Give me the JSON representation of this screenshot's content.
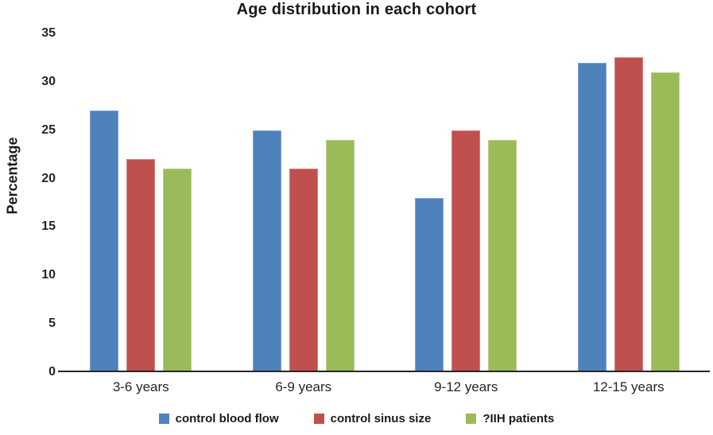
{
  "figure": {
    "title": "Age distribution in each cohort"
  },
  "chart_data": {
    "type": "bar",
    "title": "Age distribution in each cohort",
    "categories": [
      "3-6 years",
      "6-9 years",
      "9-12 years",
      "12-15 years"
    ],
    "series": [
      {
        "name": "control blood flow",
        "color": "#4F81BD",
        "values": [
          27,
          25,
          18,
          32
        ]
      },
      {
        "name": "control sinus size",
        "color": "#C0504D",
        "values": [
          22,
          21,
          25,
          32.5
        ]
      },
      {
        "name": "?IIH patients",
        "color": "#9BBB59",
        "values": [
          21,
          24,
          24,
          31
        ]
      }
    ],
    "xlabel": "",
    "ylabel": "Percentage",
    "ylim": [
      0,
      35
    ],
    "yticks": [
      0,
      5,
      10,
      15,
      20,
      25,
      30,
      35
    ],
    "grid": false,
    "legend_position": "bottom",
    "axis_line_color": "#262626",
    "text_color": "#1a1a1a"
  }
}
